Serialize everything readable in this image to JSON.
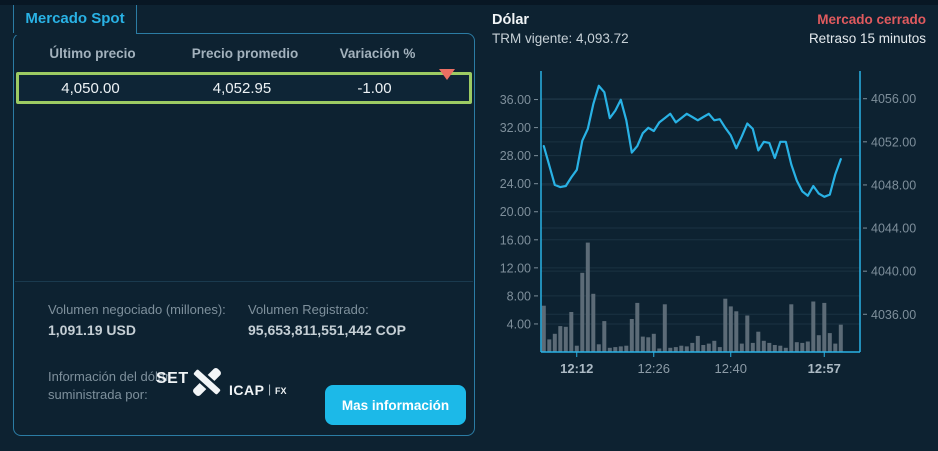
{
  "tab": {
    "label": "Mercado Spot"
  },
  "spot_table": {
    "headers": [
      "Último precio",
      "Precio promedio",
      "Variación %"
    ],
    "row": {
      "ultimo_precio": "4,050.00",
      "precio_promedio": "4,052.95",
      "variacion": "-1.00",
      "direction": "down"
    }
  },
  "volume": {
    "negociado_label": "Volumen negociado (millones):",
    "negociado_value": "1,091.19 USD",
    "registrado_label": "Volumen Registrado:",
    "registrado_value": "95,653,811,551,442 COP"
  },
  "provider": {
    "label": "Información del dólar suministrada por:",
    "logo": {
      "set": "SET",
      "icap": "ICAP",
      "fx": "FX"
    }
  },
  "cta": {
    "label": "Mas información"
  },
  "quote_header": {
    "title": "Dólar",
    "trm_label": "TRM vigente:",
    "trm_value": "4,093.72",
    "market_status": "Mercado cerrado",
    "delay": "Retraso 15 minutos"
  },
  "colors": {
    "background": "#0D2231",
    "accent_cyan": "#29B2E5",
    "panel_border": "#2B7CA4",
    "row_highlight_border": "#9CCB63",
    "negative_red": "#EA6F63",
    "market_closed_red": "#E05A5E",
    "button_cyan": "#1CB9E8",
    "bar_gray": "#5C6B77",
    "grid": "#1B3342",
    "axis_label_gray": "#7E8F9B"
  },
  "chart_data": {
    "type": "line+bar",
    "x": [
      "12:06",
      "12:07",
      "12:08",
      "12:09",
      "12:10",
      "12:11",
      "12:12",
      "12:13",
      "12:14",
      "12:15",
      "12:16",
      "12:17",
      "12:18",
      "12:19",
      "12:20",
      "12:21",
      "12:22",
      "12:23",
      "12:24",
      "12:25",
      "12:26",
      "12:27",
      "12:28",
      "12:29",
      "12:30",
      "12:31",
      "12:32",
      "12:33",
      "12:34",
      "12:35",
      "12:36",
      "12:37",
      "12:38",
      "12:39",
      "12:40",
      "12:41",
      "12:42",
      "12:43",
      "12:44",
      "12:45",
      "12:46",
      "12:47",
      "12:48",
      "12:49",
      "12:50",
      "12:51",
      "12:52",
      "12:53",
      "12:54",
      "12:55",
      "12:56",
      "12:57",
      "12:58",
      "12:59",
      "13:00"
    ],
    "x_tick_labels": [
      {
        "label": "12:12",
        "index": 6,
        "bold": true
      },
      {
        "label": "12:26",
        "index": 20,
        "bold": false
      },
      {
        "label": "12:40",
        "index": 34,
        "bold": false
      },
      {
        "label": "12:57",
        "index": 51,
        "bold": true
      }
    ],
    "left_axis": {
      "ticks": [
        "4.00",
        "8.00",
        "12.00",
        "16.00",
        "20.00",
        "24.00",
        "28.00",
        "32.00",
        "36.00"
      ],
      "min": 0,
      "max": 39.5
    },
    "right_axis": {
      "ticks": [
        "4036.00",
        "4040.00",
        "4044.00",
        "4048.00",
        "4052.00",
        "4056.00"
      ],
      "min": 4032.5,
      "max": 4058.2
    },
    "series": [
      {
        "name": "precio",
        "type": "line",
        "axis": "right",
        "color": "#29B2E5",
        "values": [
          4051.6,
          4049.8,
          4048.0,
          4047.8,
          4047.9,
          4048.7,
          4049.4,
          4052.1,
          4053.2,
          4055.5,
          4057.2,
          4056.6,
          4054.2,
          4054.9,
          4055.9,
          4054.0,
          4051.0,
          4051.6,
          4052.8,
          4053.3,
          4053.0,
          4053.8,
          4054.2,
          4054.6,
          4053.8,
          4054.2,
          4054.6,
          4054.3,
          4054.0,
          4054.3,
          4054.6,
          4054.0,
          4054.1,
          4053.3,
          4052.6,
          4051.4,
          4052.5,
          4053.7,
          4053.2,
          4051.2,
          4052.0,
          4051.9,
          4050.5,
          4052.0,
          4052.0,
          4049.9,
          4048.4,
          4047.4,
          4047.0,
          4047.9,
          4047.2,
          4046.9,
          4047.1,
          4049.0,
          4050.4
        ]
      },
      {
        "name": "volumen",
        "type": "bar",
        "axis": "left",
        "color": "#5C6B77",
        "values": [
          6.6,
          1.8,
          2.6,
          3.7,
          3.6,
          5.7,
          0.9,
          11.3,
          15.6,
          8.3,
          1.1,
          4.4,
          0.6,
          0.7,
          0.8,
          0.9,
          4.7,
          7.0,
          2.2,
          2.1,
          2.6,
          0.5,
          6.8,
          0.6,
          0.7,
          0.9,
          0.8,
          1.3,
          2.3,
          1.0,
          1.2,
          1.6,
          0.7,
          7.6,
          6.5,
          5.8,
          1.2,
          5.2,
          1.3,
          2.9,
          1.6,
          1.3,
          1.0,
          0.9,
          0.6,
          6.8,
          1.4,
          1.3,
          1.5,
          7.2,
          2.4,
          7.0,
          2.7,
          1.2,
          3.9
        ]
      }
    ],
    "grid": true,
    "legend": "none"
  }
}
